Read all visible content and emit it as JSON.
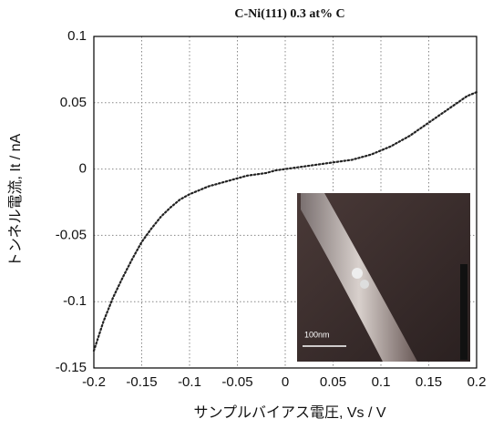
{
  "chart_data": {
    "type": "line",
    "title": "C-Ni(111)   0.3 at% C",
    "x_label": "サンプルバイアス電圧, Vs / V",
    "y_label": "トンネル電流, It / nA",
    "inset_scale_label": "100nm",
    "x": [
      -0.2,
      -0.19,
      -0.18,
      -0.17,
      -0.16,
      -0.15,
      -0.14,
      -0.13,
      -0.12,
      -0.11,
      -0.1,
      -0.09,
      -0.08,
      -0.07,
      -0.06,
      -0.05,
      -0.04,
      -0.03,
      -0.02,
      -0.01,
      0,
      0.01,
      0.02,
      0.03,
      0.04,
      0.05,
      0.06,
      0.07,
      0.08,
      0.09,
      0.1,
      0.11,
      0.12,
      0.13,
      0.14,
      0.15,
      0.16,
      0.17,
      0.18,
      0.19,
      0.2
    ],
    "series": [
      {
        "color": "#222222",
        "values": [
          -0.137,
          -0.115,
          -0.097,
          -0.082,
          -0.068,
          -0.055,
          -0.045,
          -0.036,
          -0.029,
          -0.023,
          -0.019,
          -0.016,
          -0.013,
          -0.011,
          -0.009,
          -0.007,
          -0.005,
          -0.004,
          -0.003,
          -0.001,
          0,
          0.001,
          0.002,
          0.003,
          0.004,
          0.005,
          0.006,
          0.007,
          0.009,
          0.011,
          0.014,
          0.017,
          0.021,
          0.025,
          0.03,
          0.035,
          0.04,
          0.045,
          0.05,
          0.055,
          0.058
        ]
      }
    ],
    "xlim": [
      -0.2,
      0.2
    ],
    "xticks": [
      -0.2,
      -0.15,
      -0.1,
      -0.05,
      0,
      0.05,
      0.1,
      0.15,
      0.2
    ],
    "ylim": [
      -0.15,
      0.1
    ],
    "yticks": [
      -0.15,
      -0.1,
      -0.05,
      0,
      0.05,
      0.1
    ],
    "grid": true
  }
}
